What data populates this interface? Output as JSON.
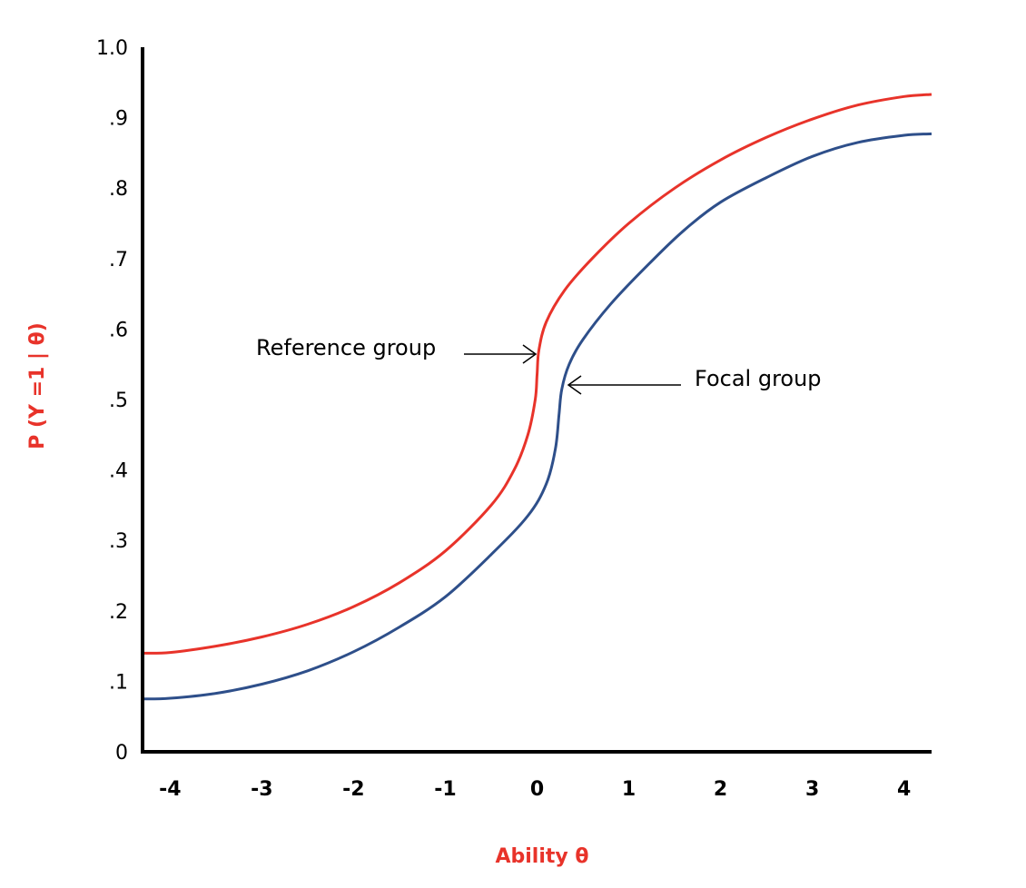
{
  "chart_data": {
    "type": "line",
    "xlabel": "Ability θ",
    "ylabel": "P (Y =1 | θ)",
    "xlim": [
      -4.3,
      4.3
    ],
    "ylim": [
      0,
      1.0
    ],
    "x_ticks": [
      "-4",
      "-3",
      "-2",
      "-1",
      "0",
      "1",
      "2",
      "3",
      "4"
    ],
    "y_ticks": [
      "0",
      ".1",
      ".2",
      ".3",
      ".4",
      ".5",
      ".6",
      ".7",
      ".8",
      ".9",
      "1.0"
    ],
    "grid": false,
    "series": [
      {
        "color": "#e8332a",
        "points": [
          [
            -4.3,
            0.14
          ],
          [
            -4.0,
            0.141
          ],
          [
            -3.5,
            0.15
          ],
          [
            -3.0,
            0.163
          ],
          [
            -2.5,
            0.181
          ],
          [
            -2.0,
            0.206
          ],
          [
            -1.5,
            0.24
          ],
          [
            -1.0,
            0.285
          ],
          [
            -0.5,
            0.35
          ],
          [
            -0.25,
            0.4
          ],
          [
            -0.1,
            0.45
          ],
          [
            -0.02,
            0.5
          ],
          [
            0.0,
            0.535
          ],
          [
            0.02,
            0.57
          ],
          [
            0.1,
            0.61
          ],
          [
            0.3,
            0.655
          ],
          [
            0.6,
            0.7
          ],
          [
            1.0,
            0.75
          ],
          [
            1.5,
            0.8
          ],
          [
            2.0,
            0.84
          ],
          [
            2.5,
            0.872
          ],
          [
            3.0,
            0.898
          ],
          [
            3.5,
            0.918
          ],
          [
            4.0,
            0.93
          ],
          [
            4.3,
            0.933
          ]
        ]
      },
      {
        "color": "#2e4f8a",
        "points": [
          [
            -4.3,
            0.075
          ],
          [
            -4.0,
            0.076
          ],
          [
            -3.5,
            0.083
          ],
          [
            -3.0,
            0.096
          ],
          [
            -2.5,
            0.115
          ],
          [
            -2.0,
            0.142
          ],
          [
            -1.5,
            0.177
          ],
          [
            -1.0,
            0.22
          ],
          [
            -0.5,
            0.28
          ],
          [
            -0.1,
            0.335
          ],
          [
            0.1,
            0.38
          ],
          [
            0.2,
            0.43
          ],
          [
            0.24,
            0.48
          ],
          [
            0.27,
            0.515
          ],
          [
            0.35,
            0.55
          ],
          [
            0.5,
            0.585
          ],
          [
            0.8,
            0.635
          ],
          [
            1.2,
            0.69
          ],
          [
            1.6,
            0.74
          ],
          [
            2.0,
            0.78
          ],
          [
            2.5,
            0.815
          ],
          [
            3.0,
            0.845
          ],
          [
            3.5,
            0.865
          ],
          [
            4.0,
            0.875
          ],
          [
            4.3,
            0.877
          ]
        ]
      }
    ],
    "annotations": [
      {
        "text": "Reference group",
        "target": [
          0.0,
          0.56
        ]
      },
      {
        "text": "Focal group",
        "target": [
          0.28,
          0.52
        ]
      }
    ]
  },
  "colors": {
    "reference_curve": "#e8332a",
    "focal_curve": "#2e4f8a",
    "axis_title": "#e8332a",
    "axes": "#000000"
  }
}
